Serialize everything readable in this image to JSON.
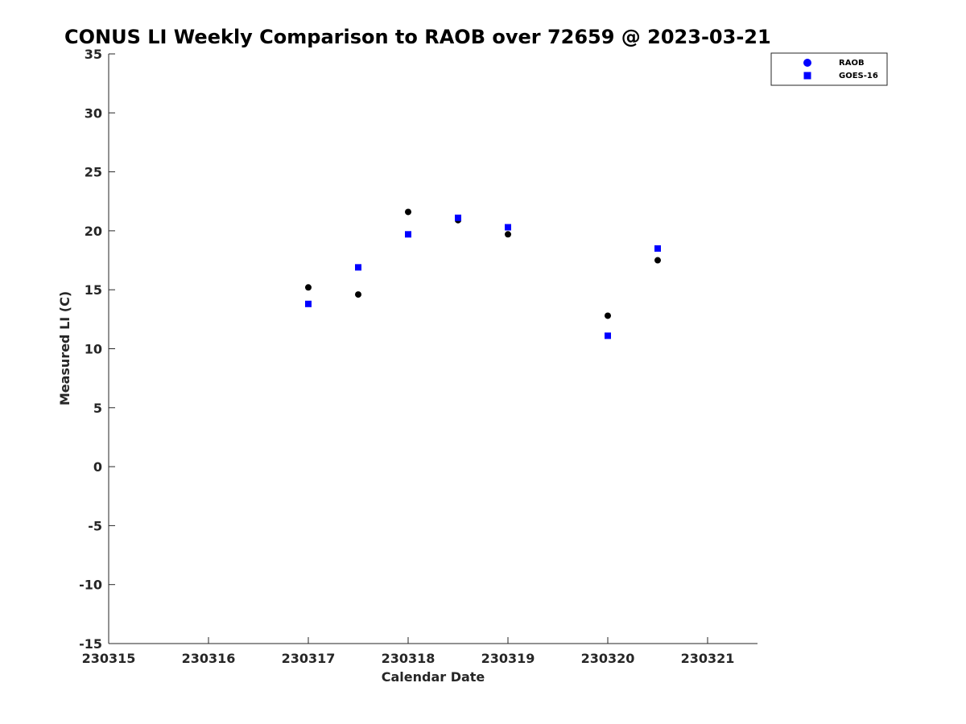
{
  "chart_data": {
    "type": "scatter",
    "title": "CONUS LI Weekly Comparison to RAOB over 72659 @ 2023-03-21",
    "xlabel": "Calendar Date",
    "ylabel": "Measured LI (C)",
    "xlim": [
      230315,
      230321.5
    ],
    "ylim": [
      -15,
      35
    ],
    "xticks": [
      230315,
      230316,
      230317,
      230318,
      230319,
      230320,
      230321
    ],
    "xtick_labels": [
      "230315",
      "230316",
      "230317",
      "230318",
      "230319",
      "230320",
      "230321"
    ],
    "yticks": [
      -15,
      -10,
      -5,
      0,
      5,
      10,
      15,
      20,
      25,
      30,
      35
    ],
    "ytick_labels": [
      "-15",
      "-10",
      "-5",
      "0",
      "5",
      "10",
      "15",
      "20",
      "25",
      "30",
      "35"
    ],
    "grid": false,
    "legend_position": "top-right",
    "series": [
      {
        "name": "RAOB",
        "marker": "circle",
        "color": "#000000",
        "legend_color": "#0000ff",
        "x": [
          230317,
          230317.5,
          230318,
          230318.5,
          230319,
          230320,
          230320.5
        ],
        "y": [
          15.2,
          14.6,
          21.6,
          20.9,
          19.7,
          12.8,
          17.5
        ]
      },
      {
        "name": "GOES-16",
        "marker": "square",
        "color": "#0000ff",
        "legend_color": "#0000ff",
        "x": [
          230317,
          230317.5,
          230318,
          230318.5,
          230319,
          230320,
          230320.5
        ],
        "y": [
          13.8,
          16.9,
          19.7,
          21.1,
          20.3,
          11.1,
          18.5
        ]
      }
    ]
  }
}
